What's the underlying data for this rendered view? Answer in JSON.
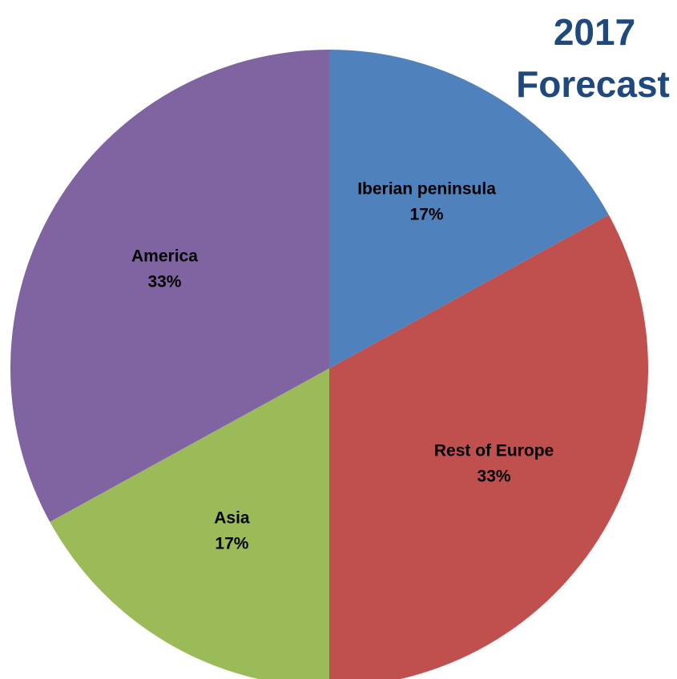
{
  "chart_data": {
    "type": "pie",
    "title_lines": [
      "2017",
      "Forecast"
    ],
    "slices": [
      {
        "label": "Iberian peninsula",
        "value": 17,
        "value_label": "17%",
        "color": "#4F81BD"
      },
      {
        "label": "Rest of Europe",
        "value": 33,
        "value_label": "33%",
        "color": "#C0504D"
      },
      {
        "label": "Asia",
        "value": 17,
        "value_label": "17%",
        "color": "#9BBB59"
      },
      {
        "label": "America",
        "value": 33,
        "value_label": "33%",
        "color": "#8064A2"
      }
    ]
  }
}
